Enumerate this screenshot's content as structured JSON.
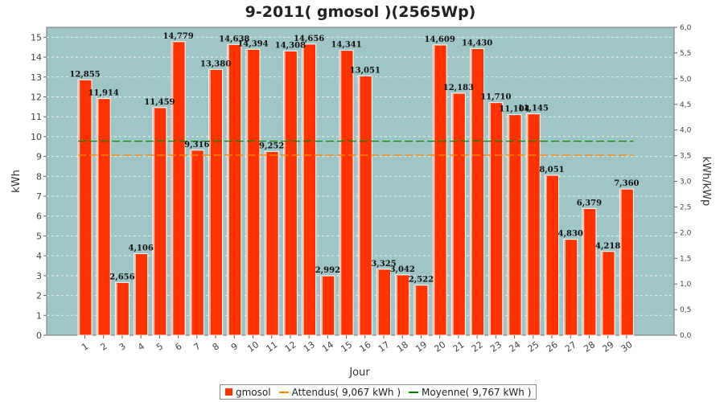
{
  "chart_data": {
    "type": "bar",
    "title": "9-2011( gmosol )(2565Wp)",
    "xlabel": "Jour",
    "ylabel": "kWh",
    "y2label": "kWh/kWp",
    "ylim": [
      0,
      15.5
    ],
    "y2lim": [
      0,
      6.0
    ],
    "yticks": [
      "0",
      "1",
      "2",
      "3",
      "4",
      "5",
      "6",
      "7",
      "8",
      "9",
      "10",
      "11",
      "12",
      "13",
      "14",
      "15"
    ],
    "y2ticks": [
      "0,0",
      "0,5",
      "1,0",
      "1,5",
      "2,0",
      "2,5",
      "3,0",
      "3,5",
      "4,0",
      "4,5",
      "5,0",
      "5,5",
      "6,0"
    ],
    "categories": [
      "1",
      "2",
      "3",
      "4",
      "5",
      "6",
      "7",
      "8",
      "9",
      "10",
      "11",
      "12",
      "13",
      "14",
      "15",
      "16",
      "17",
      "18",
      "19",
      "20",
      "21",
      "22",
      "23",
      "24",
      "25",
      "26",
      "27",
      "28",
      "29",
      "30"
    ],
    "series": [
      {
        "name": "gmosol",
        "color": "#ff3300",
        "values": [
          12.855,
          11.914,
          2.656,
          4.106,
          11.459,
          14.779,
          9.316,
          13.38,
          14.638,
          14.394,
          9.252,
          14.308,
          14.656,
          2.992,
          14.341,
          13.051,
          3.325,
          3.042,
          2.522,
          14.609,
          12.183,
          14.43,
          11.71,
          11.104,
          11.145,
          8.051,
          4.83,
          6.379,
          4.218,
          7.36
        ],
        "labels": [
          "12,855",
          "11,914",
          "2,656",
          "4,106",
          "11,459",
          "14,779",
          "9,316",
          "13,380",
          "14,638",
          "14,394",
          "9,252",
          "14,308",
          "14,656",
          "2,992",
          "14,341",
          "13,051",
          "3,325",
          "3,042",
          "2,522",
          "14,609",
          "12,183",
          "14,430",
          "11,710",
          "11,104",
          "11,145",
          "8,051",
          "4,830",
          "6,379",
          "4,218",
          "7,360"
        ]
      }
    ],
    "lines": [
      {
        "name": "Attendus( 9,067 kWh )",
        "value": 9.067,
        "color": "#ff8800"
      },
      {
        "name": "Moyenne( 9,767 kWh )",
        "value": 9.767,
        "color": "#008800"
      }
    ],
    "plot_bg": "#9fc6c6",
    "grid": true,
    "legend_position": "bottom"
  }
}
